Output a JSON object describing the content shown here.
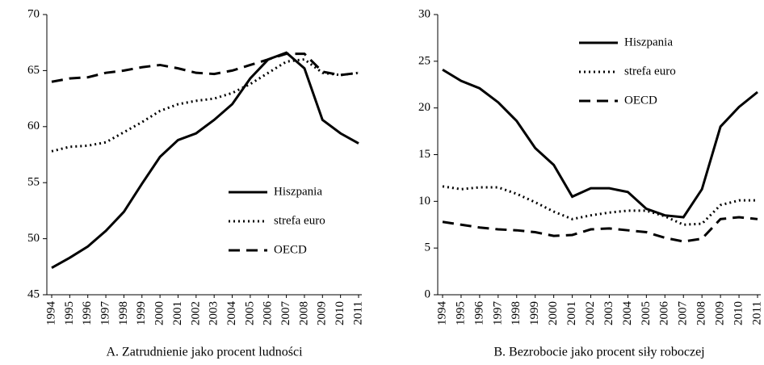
{
  "chart_data": [
    {
      "type": "line",
      "caption": "A. Zatrudnienie jako procent ludności",
      "categories": [
        "1994",
        "1995",
        "1996",
        "1997",
        "1998",
        "1999",
        "2000",
        "2001",
        "2002",
        "2003",
        "2004",
        "2005",
        "2006",
        "2007",
        "2008",
        "2009",
        "2010",
        "2011"
      ],
      "series": [
        {
          "name": "Hiszpania",
          "color": "#000000",
          "style": "solid",
          "values": [
            47.4,
            48.3,
            49.3,
            50.7,
            52.4,
            54.9,
            57.3,
            58.8,
            59.4,
            60.6,
            62.0,
            64.3,
            66.0,
            66.6,
            65.2,
            60.6,
            59.4,
            58.5
          ]
        },
        {
          "name": "strefa euro",
          "color": "#000000",
          "style": "dotted",
          "values": [
            57.8,
            58.2,
            58.3,
            58.6,
            59.5,
            60.4,
            61.4,
            62.0,
            62.3,
            62.5,
            63.0,
            63.8,
            64.8,
            65.8,
            66.0,
            64.8,
            64.6,
            64.8
          ]
        },
        {
          "name": "OECD",
          "color": "#000000",
          "style": "dashed",
          "values": [
            64.0,
            64.3,
            64.4,
            64.8,
            65.0,
            65.3,
            65.5,
            65.2,
            64.8,
            64.7,
            65.0,
            65.5,
            66.0,
            66.5,
            66.5,
            64.9,
            64.6,
            64.8
          ]
        }
      ],
      "ylim": [
        45,
        70
      ],
      "yticks": [
        45,
        50,
        55,
        60,
        65,
        70
      ],
      "legend": "lower right"
    },
    {
      "type": "line",
      "caption": "B. Bezrobocie jako procent siły roboczej",
      "categories": [
        "1994",
        "1995",
        "1996",
        "1997",
        "1998",
        "1999",
        "2000",
        "2001",
        "2002",
        "2003",
        "2004",
        "2005",
        "2006",
        "2007",
        "2008",
        "2009",
        "2010",
        "2011"
      ],
      "series": [
        {
          "name": "Hiszpania",
          "color": "#000000",
          "style": "solid",
          "values": [
            24.1,
            22.9,
            22.1,
            20.6,
            18.6,
            15.7,
            13.9,
            10.5,
            11.4,
            11.4,
            11.0,
            9.2,
            8.5,
            8.3,
            11.3,
            18.0,
            20.1,
            21.7
          ]
        },
        {
          "name": "strefa euro",
          "color": "#000000",
          "style": "dotted",
          "values": [
            11.6,
            11.3,
            11.5,
            11.5,
            10.8,
            9.9,
            8.9,
            8.1,
            8.5,
            8.8,
            9.0,
            9.0,
            8.4,
            7.5,
            7.6,
            9.6,
            10.1,
            10.1
          ]
        },
        {
          "name": "OECD",
          "color": "#000000",
          "style": "dashed",
          "values": [
            7.8,
            7.5,
            7.2,
            7.0,
            6.9,
            6.7,
            6.3,
            6.4,
            7.0,
            7.1,
            6.9,
            6.7,
            6.1,
            5.7,
            6.0,
            8.1,
            8.3,
            8.1
          ]
        }
      ],
      "ylim": [
        0,
        30
      ],
      "yticks": [
        0,
        5,
        10,
        15,
        20,
        25,
        30
      ],
      "legend": "upper center"
    }
  ]
}
